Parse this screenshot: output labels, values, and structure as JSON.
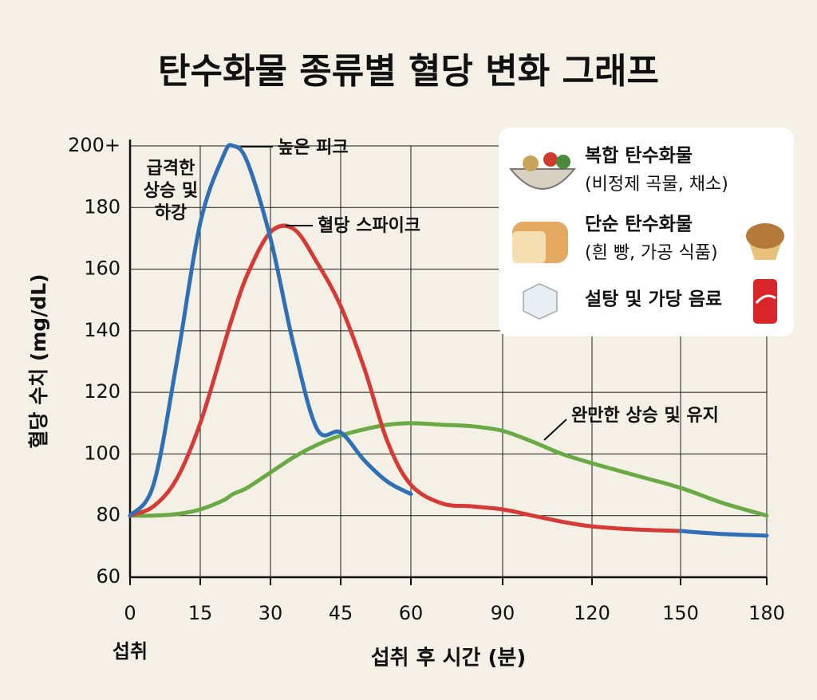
{
  "chart_data": {
    "type": "line",
    "title": "탄수화물 종류별 혈당 변화 그래프",
    "x_label": "섭취 후 시간 (분)",
    "y_label": "혈당 수치 (mg/dL)",
    "x_start_label": "섭취",
    "x": [
      0,
      5,
      10,
      15,
      20,
      22,
      25,
      30,
      35,
      40,
      45,
      50,
      55,
      60,
      70,
      80,
      90,
      100,
      110,
      120,
      135,
      150,
      165,
      180
    ],
    "series": [
      {
        "name": "복합 탄수화물",
        "note": "(비정제 곡물, 채소)",
        "color": "#6aaa45",
        "values": [
          80,
          80,
          80.5,
          82,
          85,
          87,
          89,
          94,
          99,
          103,
          106,
          108,
          109.5,
          110,
          109.5,
          109,
          107.5,
          104,
          100,
          97,
          93,
          89,
          84,
          80
        ]
      },
      {
        "name": "단순 탄수화물",
        "note": "(흰 빵, 가공 식품)",
        "color": "#d63a36",
        "values": [
          80,
          83,
          92,
          110,
          135,
          145,
          158,
          172,
          173,
          162,
          148,
          128,
          104,
          90,
          84,
          83,
          82,
          80,
          78,
          76.5,
          75.5,
          75,
          null,
          null
        ]
      },
      {
        "name": "설탕 및 가당 음료",
        "color": "#2f6fb5",
        "values": [
          80,
          90,
          130,
          175,
          197,
          200,
          195,
          170,
          135,
          108,
          107,
          98,
          91,
          87,
          null,
          null,
          null,
          null,
          null,
          null,
          null,
          75,
          74,
          73.5
        ]
      }
    ],
    "annotations": [
      {
        "lines": [
          "급격한",
          "상승 및",
          "하강"
        ]
      },
      {
        "text": "높은 피크"
      },
      {
        "text": "혈당 스파이크"
      },
      {
        "text": "완만한 상승 및 유지"
      }
    ],
    "xlim": [
      0,
      180
    ],
    "xticks": [
      0,
      15,
      30,
      45,
      60,
      90,
      120,
      150,
      180
    ],
    "ylim": [
      60,
      200
    ],
    "yticks": [
      60,
      80,
      100,
      120,
      140,
      160,
      180,
      {
        "value": 200,
        "label": "200+"
      }
    ],
    "grid": true
  }
}
